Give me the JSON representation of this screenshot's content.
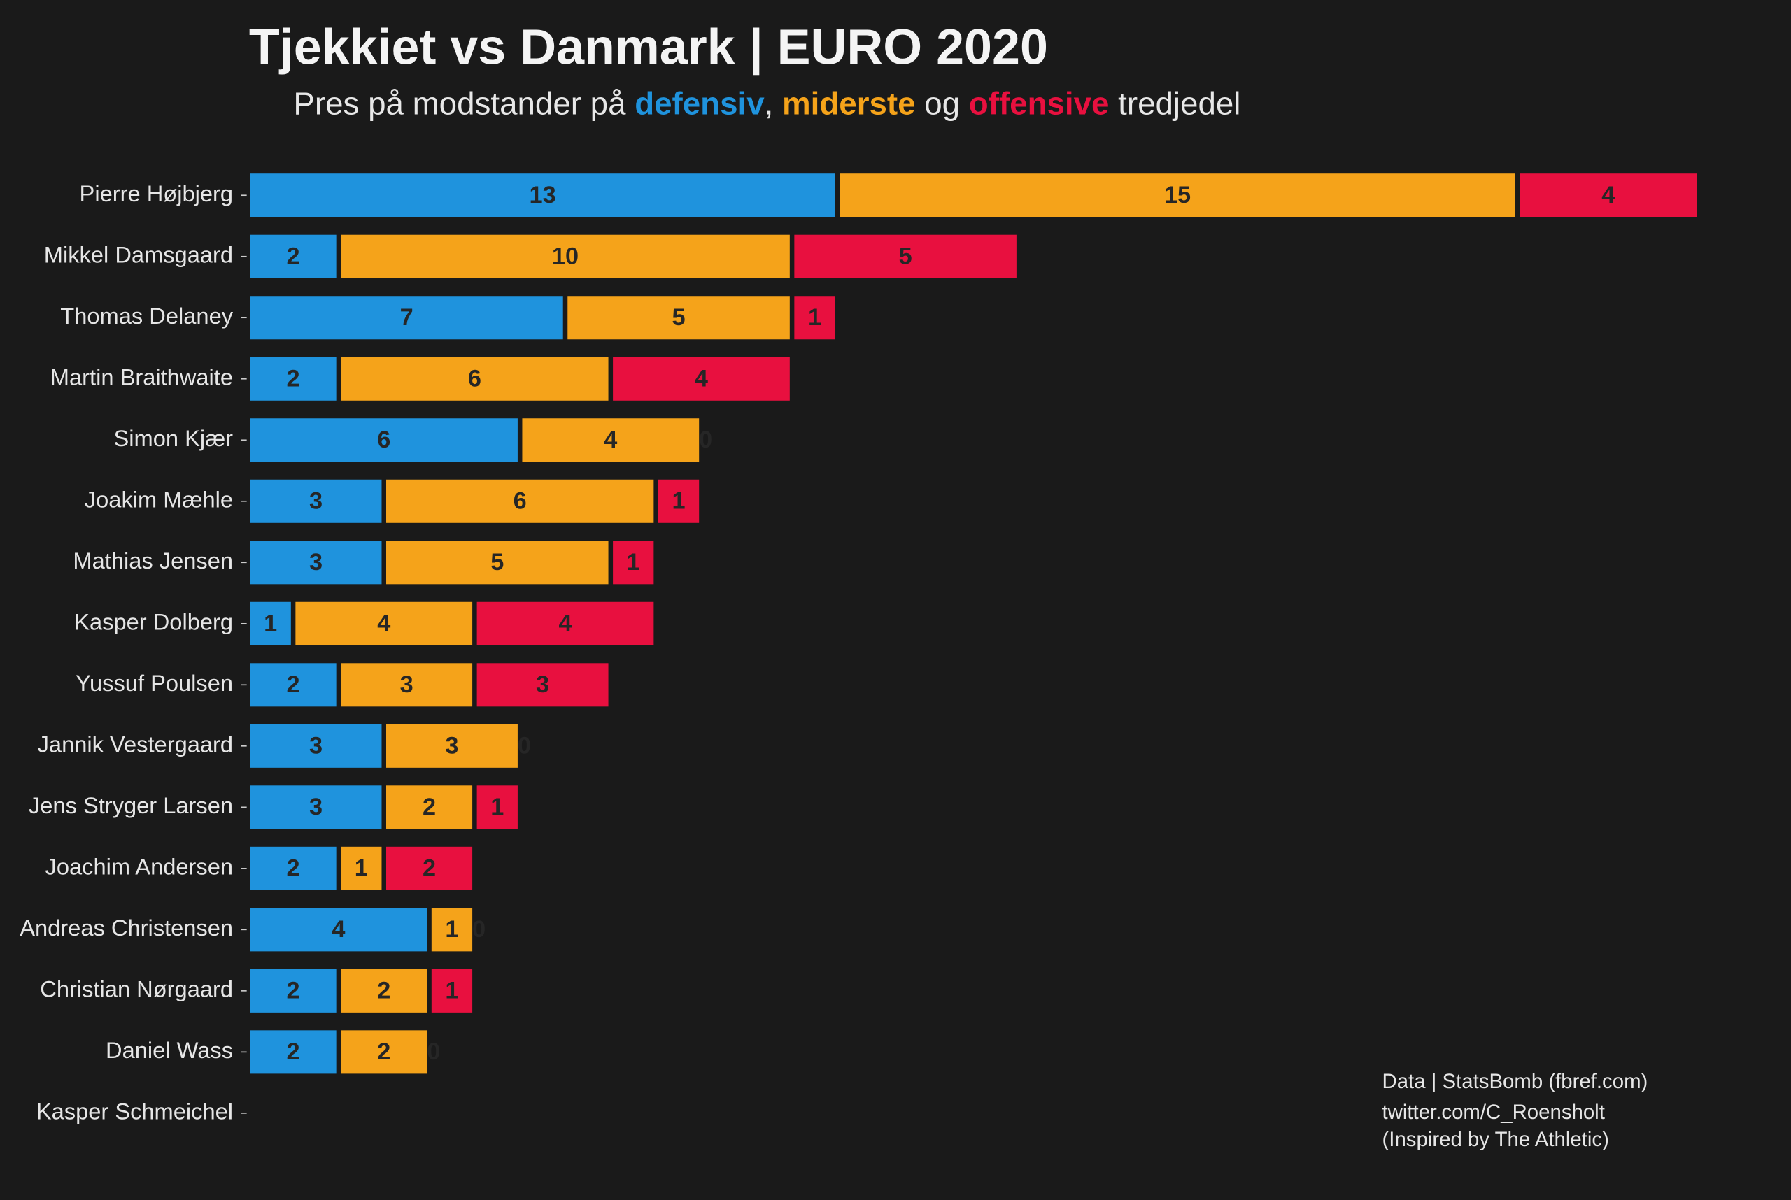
{
  "chart_data": {
    "type": "stacked-bar-horizontal",
    "title": "Tjekkiet vs Danmark | EURO 2020",
    "subtitle": [
      "Pres på modstander på ",
      ", ",
      " og ",
      " tredjedel"
    ],
    "categories": [
      "Pierre Højbjerg",
      "Mikkel Damsgaard",
      "Thomas Delaney",
      "Martin Braithwaite",
      "Simon Kjær",
      "Joakim Mæhle",
      "Mathias Jensen",
      "Kasper Dolberg",
      "Yussuf Poulsen",
      "Jannik Vestergaard",
      "Jens Stryger Larsen",
      "Joachim Andersen",
      "Andreas Christensen",
      "Christian Nørgaard",
      "Daniel Wass",
      "Kasper Schmeichel"
    ],
    "series": [
      {
        "name": "defensiv",
        "color": "#1f93dd",
        "values": [
          13,
          2,
          7,
          2,
          6,
          3,
          3,
          1,
          2,
          3,
          3,
          2,
          4,
          2,
          2,
          0
        ]
      },
      {
        "name": "miderste",
        "color": "#f5a31a",
        "values": [
          15,
          10,
          5,
          6,
          4,
          6,
          5,
          4,
          3,
          3,
          2,
          1,
          1,
          2,
          2,
          0
        ]
      },
      {
        "name": "offensive",
        "color": "#e8103f",
        "values": [
          4,
          5,
          1,
          4,
          0,
          1,
          1,
          4,
          3,
          0,
          1,
          2,
          0,
          1,
          0,
          0
        ]
      }
    ],
    "caption": [
      "Data | StatsBomb (fbref.com)",
      "twitter.com/C_Roensholt",
      "(Inspired by The Athletic)"
    ]
  }
}
